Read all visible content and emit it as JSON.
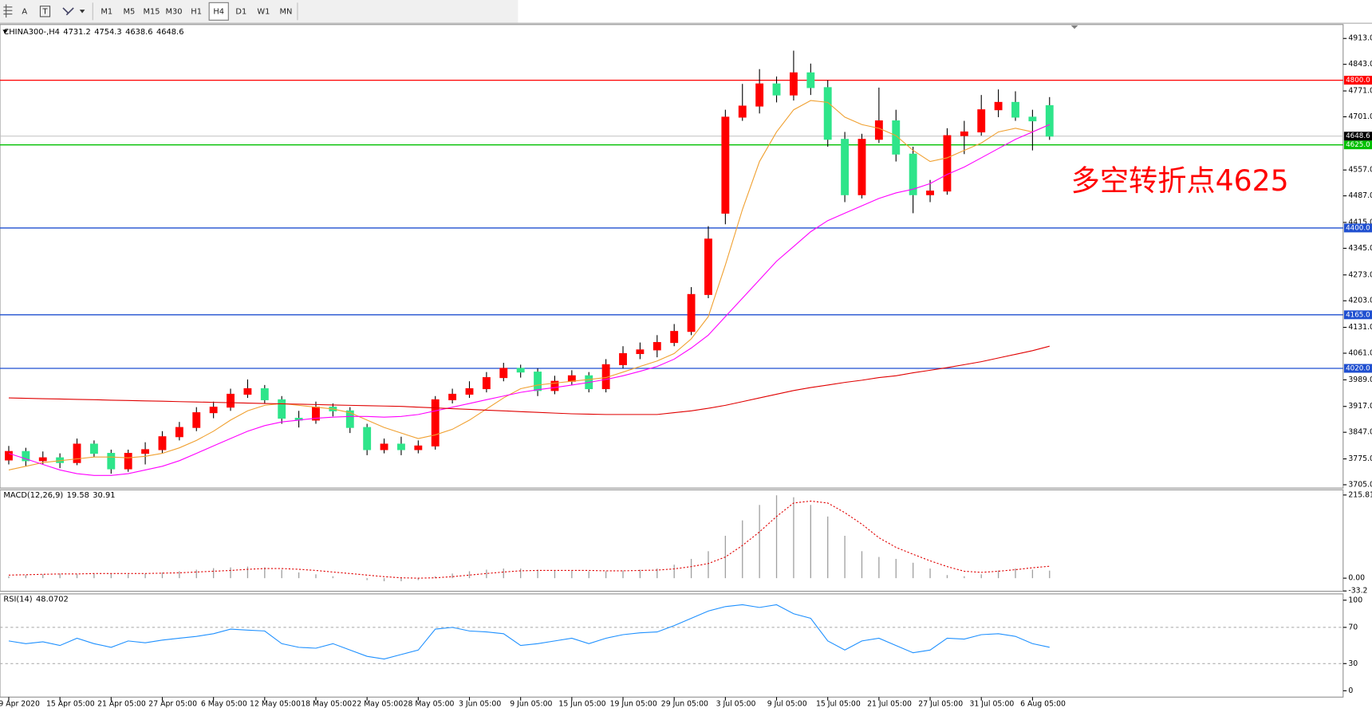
{
  "toolbar": {
    "text_tool": "A",
    "label_tool": "T",
    "timeframes": [
      {
        "label": "M1"
      },
      {
        "label": "M5"
      },
      {
        "label": "M15"
      },
      {
        "label": "M30"
      },
      {
        "label": "H1"
      },
      {
        "label": "H4",
        "active": true
      },
      {
        "label": "D1"
      },
      {
        "label": "W1"
      },
      {
        "label": "MN"
      }
    ]
  },
  "chart_data": [
    {
      "type": "candlestick",
      "title": "CHINA300-,H4",
      "categories": [
        "9 Apr 2020",
        null,
        null,
        "15 Apr 05:00",
        null,
        null,
        "21 Apr 05:00",
        null,
        null,
        "27 Apr 05:00",
        null,
        null,
        "6 May 05:00",
        null,
        null,
        "12 May 05:00",
        null,
        null,
        "18 May 05:00",
        null,
        null,
        "22 May 05:00",
        null,
        null,
        "28 May 05:00",
        null,
        null,
        "3 Jun 05:00",
        null,
        null,
        "9 Jun 05:00",
        null,
        null,
        "15 Jun 05:00",
        null,
        null,
        "19 Jun 05:00",
        null,
        null,
        "29 Jun 05:00",
        null,
        null,
        "3 Jul 05:00",
        null,
        null,
        "9 Jul 05:00",
        null,
        null,
        "15 Jul 05:00",
        null,
        null,
        "21 Jul 05:00",
        null,
        null,
        "27 Jul 05:00",
        null,
        null,
        "31 Jul 05:00",
        null,
        null,
        "6 Aug 05:00",
        null
      ],
      "candles": [
        [
          3772,
          3810,
          3760,
          3795
        ],
        [
          3795,
          3805,
          3755,
          3770
        ],
        [
          3770,
          3795,
          3760,
          3778
        ],
        [
          3778,
          3790,
          3750,
          3765
        ],
        [
          3765,
          3830,
          3758,
          3815
        ],
        [
          3815,
          3825,
          3780,
          3790
        ],
        [
          3790,
          3800,
          3735,
          3748
        ],
        [
          3748,
          3800,
          3740,
          3790
        ],
        [
          3790,
          3820,
          3760,
          3800
        ],
        [
          3800,
          3850,
          3790,
          3835
        ],
        [
          3835,
          3875,
          3825,
          3860
        ],
        [
          3860,
          3915,
          3850,
          3900
        ],
        [
          3900,
          3930,
          3885,
          3915
        ],
        [
          3915,
          3965,
          3905,
          3950
        ],
        [
          3950,
          3990,
          3940,
          3965
        ],
        [
          3965,
          3975,
          3925,
          3935
        ],
        [
          3935,
          3945,
          3870,
          3885
        ],
        [
          3885,
          3905,
          3860,
          3880
        ],
        [
          3880,
          3930,
          3870,
          3915
        ],
        [
          3915,
          3925,
          3890,
          3905
        ],
        [
          3905,
          3915,
          3845,
          3860
        ],
        [
          3860,
          3870,
          3785,
          3800
        ],
        [
          3800,
          3830,
          3790,
          3815
        ],
        [
          3815,
          3835,
          3785,
          3800
        ],
        [
          3800,
          3825,
          3790,
          3810
        ],
        [
          3810,
          3945,
          3800,
          3935
        ],
        [
          3935,
          3965,
          3925,
          3950
        ],
        [
          3950,
          3985,
          3940,
          3965
        ],
        [
          3965,
          4010,
          3955,
          3995
        ],
        [
          3995,
          4035,
          3985,
          4020
        ],
        [
          4020,
          4030,
          3995,
          4010
        ],
        [
          4010,
          4020,
          3945,
          3960
        ],
        [
          3960,
          4000,
          3950,
          3985
        ],
        [
          3985,
          4015,
          3975,
          4000
        ],
        [
          4000,
          4010,
          3955,
          3965
        ],
        [
          3965,
          4045,
          3955,
          4030
        ],
        [
          4030,
          4080,
          4020,
          4060
        ],
        [
          4060,
          4090,
          4045,
          4070
        ],
        [
          4070,
          4110,
          4050,
          4090
        ],
        [
          4090,
          4140,
          4080,
          4120
        ],
        [
          4120,
          4240,
          4110,
          4220
        ],
        [
          4220,
          4405,
          4210,
          4370
        ],
        [
          4440,
          4720,
          4410,
          4700
        ],
        [
          4700,
          4790,
          4690,
          4730
        ],
        [
          4730,
          4830,
          4710,
          4790
        ],
        [
          4790,
          4810,
          4740,
          4760
        ],
        [
          4760,
          4880,
          4745,
          4820
        ],
        [
          4820,
          4845,
          4760,
          4780
        ],
        [
          4780,
          4800,
          4620,
          4640
        ],
        [
          4640,
          4660,
          4470,
          4490
        ],
        [
          4490,
          4655,
          4480,
          4640
        ],
        [
          4640,
          4780,
          4630,
          4690
        ],
        [
          4690,
          4720,
          4580,
          4600
        ],
        [
          4600,
          4620,
          4440,
          4490
        ],
        [
          4490,
          4530,
          4470,
          4500
        ],
        [
          4500,
          4670,
          4490,
          4650
        ],
        [
          4650,
          4690,
          4600,
          4660
        ],
        [
          4660,
          4760,
          4650,
          4720
        ],
        [
          4720,
          4775,
          4700,
          4740
        ],
        [
          4740,
          4770,
          4690,
          4700
        ],
        [
          4700,
          4720,
          4610,
          4690
        ],
        [
          4731.2,
          4754.3,
          4638.6,
          4648.6
        ]
      ],
      "up_color": "#ff0000",
      "down_color": "#2ee58a",
      "wick_color": "#000000",
      "series": [
        {
          "color": "#f0a030",
          "values": [
            3745,
            3755,
            3765,
            3770,
            3775,
            3780,
            3780,
            3778,
            3782,
            3790,
            3805,
            3825,
            3850,
            3880,
            3905,
            3920,
            3925,
            3920,
            3915,
            3910,
            3900,
            3880,
            3860,
            3845,
            3830,
            3840,
            3855,
            3880,
            3910,
            3940,
            3965,
            3975,
            3980,
            3985,
            3990,
            3995,
            4010,
            4025,
            4040,
            4060,
            4100,
            4160,
            4300,
            4450,
            4580,
            4660,
            4720,
            4745,
            4740,
            4700,
            4680,
            4670,
            4650,
            4610,
            4580,
            4590,
            4610,
            4630,
            4660,
            4670,
            4660,
            4680
          ]
        },
        {
          "color": "#ff00ff",
          "values": [
            3790,
            3775,
            3760,
            3745,
            3735,
            3730,
            3730,
            3735,
            3745,
            3755,
            3770,
            3790,
            3810,
            3830,
            3850,
            3865,
            3875,
            3880,
            3885,
            3888,
            3890,
            3890,
            3888,
            3890,
            3895,
            3905,
            3915,
            3925,
            3935,
            3945,
            3955,
            3962,
            3968,
            3975,
            3982,
            3990,
            4000,
            4012,
            4025,
            4045,
            4075,
            4110,
            4160,
            4210,
            4260,
            4310,
            4350,
            4390,
            4420,
            4440,
            4460,
            4480,
            4495,
            4505,
            4520,
            4545,
            4565,
            4590,
            4615,
            4640,
            4660,
            4680
          ]
        },
        {
          "color": "#e00000",
          "values": [
            3940,
            3939,
            3938,
            3937,
            3936,
            3935,
            3934,
            3933,
            3932,
            3931,
            3930,
            3929,
            3928,
            3927,
            3926,
            3925,
            3924,
            3923,
            3922,
            3921,
            3920,
            3919,
            3918,
            3917,
            3915,
            3913,
            3911,
            3909,
            3907,
            3905,
            3903,
            3901,
            3899,
            3897,
            3896,
            3895,
            3895,
            3895,
            3895,
            3900,
            3905,
            3912,
            3920,
            3930,
            3940,
            3950,
            3960,
            3968,
            3975,
            3982,
            3988,
            3995,
            4000,
            4008,
            4015,
            4022,
            4030,
            4038,
            4048,
            4058,
            4068,
            4080
          ]
        }
      ],
      "ylim": [
        3696,
        4946
      ],
      "yticks": [
        {
          "value": 4913,
          "label": "4913.0"
        },
        {
          "value": 4843,
          "label": "4843.0"
        },
        {
          "value": 4771,
          "label": "4771.0"
        },
        {
          "value": 4701,
          "label": "4701.0"
        },
        {
          "value": 4557,
          "label": "4557.0"
        },
        {
          "value": 4487,
          "label": "4487.0"
        },
        {
          "value": 4415,
          "label": "4415.0"
        },
        {
          "value": 4345,
          "label": "4345.0"
        },
        {
          "value": 4273,
          "label": "4273.0"
        },
        {
          "value": 4203,
          "label": "4203.0"
        },
        {
          "value": 4131,
          "label": "4131.0"
        },
        {
          "value": 4061,
          "label": "4061.0"
        },
        {
          "value": 3989,
          "label": "3989.0"
        },
        {
          "value": 3917,
          "label": "3917.0"
        },
        {
          "value": 3847,
          "label": "3847.0"
        },
        {
          "value": 3775,
          "label": "3775.0"
        },
        {
          "value": 3705,
          "label": "3705.0"
        }
      ],
      "levels": [
        {
          "value": 4800,
          "label": "4800.0",
          "color": "#ff0000"
        },
        {
          "value": 4625,
          "label": "4625.0",
          "color": "#00c000"
        },
        {
          "value": 4400,
          "label": "4400.0",
          "color": "#1f4fd0"
        },
        {
          "value": 4165,
          "label": "4165.0",
          "color": "#1f4fd0"
        },
        {
          "value": 4020,
          "label": "4020.0",
          "color": "#1f4fd0"
        }
      ],
      "last_price_color": "#c0c0c0",
      "annotation": {
        "text": "多空转折点4625",
        "color": "#ff0000"
      }
    },
    {
      "type": "macd",
      "title": "MACD(12,26,9)",
      "series": [
        {
          "color": "#a0a0a0",
          "values": [
            5,
            8,
            10,
            12,
            10,
            12,
            12,
            10,
            12,
            15,
            18,
            22,
            26,
            28,
            30,
            28,
            22,
            15,
            10,
            5,
            0,
            -5,
            -8,
            -8,
            -5,
            5,
            12,
            18,
            22,
            25,
            25,
            22,
            20,
            20,
            18,
            18,
            20,
            22,
            25,
            35,
            50,
            70,
            110,
            150,
            190,
            215,
            210,
            190,
            160,
            110,
            70,
            55,
            50,
            40,
            25,
            8,
            5,
            10,
            20,
            25,
            22,
            19.58
          ]
        },
        {
          "color": "#e00000",
          "values": [
            8,
            9,
            10,
            11,
            11,
            12,
            12,
            12,
            12,
            13,
            14,
            16,
            18,
            20,
            23,
            25,
            25,
            23,
            20,
            16,
            12,
            8,
            4,
            1,
            0,
            1,
            4,
            8,
            12,
            16,
            19,
            20,
            20,
            20,
            20,
            19,
            19,
            20,
            21,
            24,
            30,
            38,
            55,
            85,
            120,
            160,
            195,
            200,
            195,
            170,
            140,
            105,
            80,
            62,
            45,
            30,
            18,
            15,
            18,
            22,
            27,
            30.91
          ]
        }
      ],
      "ylim": [
        -34,
        227
      ],
      "yticks": [
        215.81,
        {
          "value": 0,
          "label": "0.00"
        },
        -33.2
      ]
    },
    {
      "type": "line",
      "title": "RSI(14)",
      "color": "#1e90ff",
      "values": [
        55,
        52,
        54,
        50,
        58,
        52,
        48,
        55,
        53,
        56,
        58,
        60,
        63,
        68,
        67,
        66,
        52,
        48,
        47,
        52,
        45,
        38,
        35,
        40,
        45,
        68,
        70,
        66,
        65,
        63,
        50,
        52,
        55,
        58,
        52,
        58,
        62,
        64,
        65,
        72,
        80,
        88,
        93,
        95,
        92,
        95,
        85,
        80,
        55,
        45,
        55,
        58,
        50,
        42,
        45,
        58,
        57,
        62,
        63,
        60,
        52,
        48.0702
      ],
      "ylim": [
        -7,
        106
      ],
      "yticks": [
        100,
        70,
        30,
        0
      ],
      "levels": [
        70,
        30
      ]
    }
  ]
}
